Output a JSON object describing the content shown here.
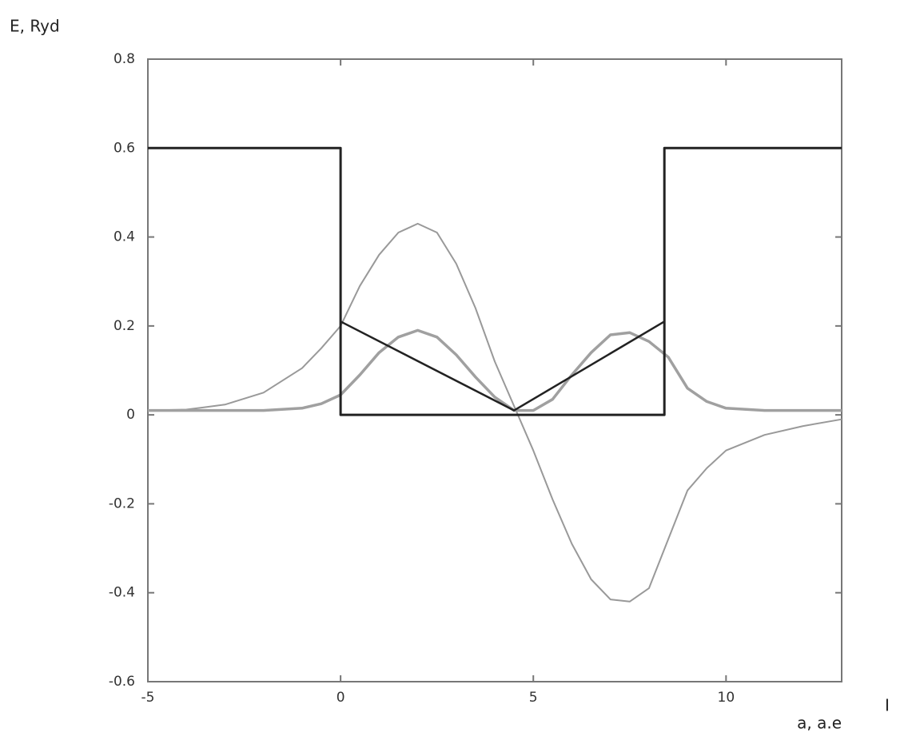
{
  "chart_data": {
    "type": "line",
    "ylabel": "E, Ryd",
    "xlabel": "a, a.e",
    "annotation": "I",
    "xlim": [
      -5,
      13
    ],
    "xticks": [
      -5,
      0,
      5,
      10
    ],
    "ylim": [
      -0.6,
      0.8
    ],
    "yticks": [
      -0.6,
      -0.4,
      -0.2,
      0,
      0.2,
      0.4,
      0.6,
      0.8
    ],
    "grid": false,
    "series": [
      {
        "color": "#999999",
        "width": 2,
        "x": [
          -5,
          -4,
          -3,
          -2,
          -1,
          -0.5,
          0,
          0.5,
          1,
          1.5,
          2,
          2.5,
          3,
          3.5,
          4,
          4.5,
          5,
          5.5,
          6,
          6.5,
          7,
          7.5,
          8,
          8.5,
          9,
          9.5,
          10,
          11,
          12,
          13
        ],
        "values": [
          0.01,
          0.012,
          0.023,
          0.05,
          0.105,
          0.15,
          0.2,
          0.29,
          0.36,
          0.41,
          0.43,
          0.41,
          0.34,
          0.24,
          0.12,
          0.02,
          -0.08,
          -0.19,
          -0.29,
          -0.37,
          -0.415,
          -0.42,
          -0.39,
          -0.28,
          -0.17,
          -0.12,
          -0.08,
          -0.045,
          -0.025,
          -0.01
        ]
      },
      {
        "color": "#a0a0a0",
        "width": 3.5,
        "x": [
          -5,
          -4,
          -3,
          -2,
          -1,
          -0.5,
          0,
          0.5,
          1,
          1.5,
          2,
          2.5,
          3,
          3.5,
          4,
          4.5,
          5,
          5.5,
          6,
          6.5,
          7,
          7.5,
          8,
          8.5,
          9,
          9.5,
          10,
          11,
          12,
          13
        ],
        "values": [
          0.01,
          0.01,
          0.01,
          0.01,
          0.015,
          0.025,
          0.045,
          0.09,
          0.14,
          0.175,
          0.19,
          0.175,
          0.135,
          0.085,
          0.04,
          0.01,
          0.01,
          0.035,
          0.09,
          0.14,
          0.18,
          0.185,
          0.165,
          0.13,
          0.06,
          0.03,
          0.015,
          0.01,
          0.01,
          0.01
        ]
      },
      {
        "color": "#222222",
        "width": 2.5,
        "x": [
          0,
          4.5,
          8.4
        ],
        "values": [
          0.21,
          0.01,
          0.21
        ]
      },
      {
        "color": "#222222",
        "width": 3,
        "x": [
          -5,
          0,
          0,
          8.4,
          8.4,
          13
        ],
        "values": [
          0.6,
          0.6,
          0,
          0,
          0.6,
          0.6
        ]
      }
    ]
  }
}
